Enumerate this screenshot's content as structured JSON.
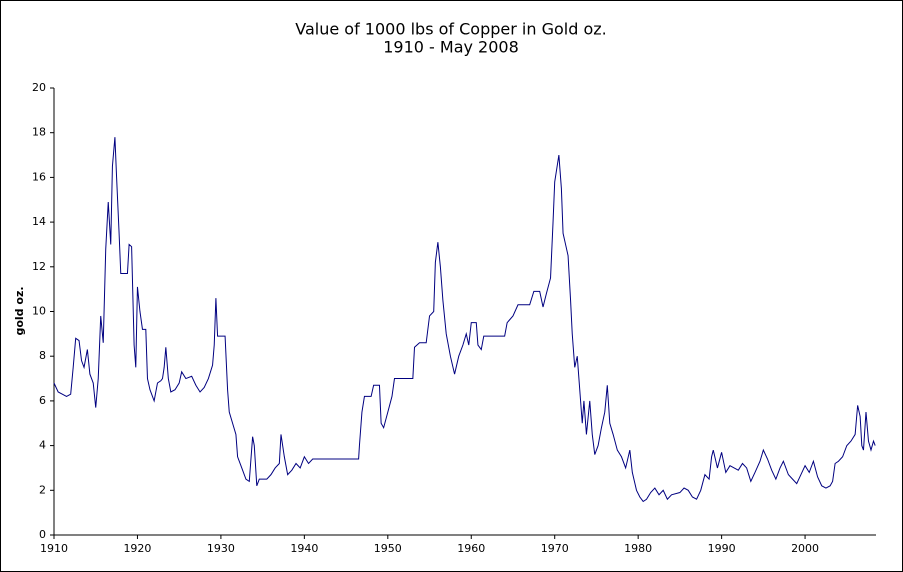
{
  "chart_data": {
    "type": "line",
    "title": "Value of 1000 lbs of Copper in Gold oz.",
    "subtitle": "1910 - May 2008",
    "y_label": "gold oz.",
    "xlim": [
      1910,
      2008.5
    ],
    "xticks": [
      1910,
      1920,
      1930,
      1940,
      1950,
      1960,
      1970,
      1980,
      1990,
      2000
    ],
    "ylim": [
      0,
      20
    ],
    "yticks": [
      0,
      2,
      4,
      6,
      8,
      10,
      12,
      14,
      16,
      18,
      20
    ],
    "grid": false,
    "series": [
      {
        "name": "copper in gold",
        "color": "#000080",
        "x": [
          1910,
          1910.5,
          1911,
          1911.5,
          1912,
          1912.3,
          1912.6,
          1913,
          1913.3,
          1913.6,
          1914,
          1914.3,
          1914.7,
          1915,
          1915.3,
          1915.6,
          1915.9,
          1916.2,
          1916.5,
          1916.8,
          1917,
          1917.3,
          1917.5,
          1917.8,
          1918,
          1918.8,
          1919,
          1919.3,
          1919.6,
          1919.8,
          1920,
          1920.3,
          1920.6,
          1921,
          1921.2,
          1921.5,
          1922,
          1922.4,
          1922.8,
          1923,
          1923.2,
          1923.4,
          1923.7,
          1924,
          1924.5,
          1925,
          1925.3,
          1925.8,
          1926.5,
          1927,
          1927.5,
          1928,
          1928.5,
          1929,
          1929.2,
          1929.4,
          1929.6,
          1930.5,
          1930.8,
          1931,
          1931.4,
          1931.8,
          1932,
          1932.5,
          1933,
          1933.4,
          1933.8,
          1934,
          1934.3,
          1934.6,
          1935.5,
          1936,
          1936.5,
          1937,
          1937.2,
          1937.6,
          1938,
          1938.5,
          1939,
          1939.5,
          1940,
          1940.5,
          1941,
          1946.5,
          1946.6,
          1946.9,
          1947.2,
          1948,
          1948.3,
          1949,
          1949.2,
          1949.5,
          1950,
          1950.5,
          1950.8,
          1953,
          1953.2,
          1953.8,
          1954.6,
          1955,
          1955.5,
          1955.7,
          1956,
          1956.3,
          1956.6,
          1957,
          1957.5,
          1958,
          1958.5,
          1959,
          1959.4,
          1959.7,
          1960,
          1960.6,
          1960.8,
          1961.2,
          1961.5,
          1964,
          1964.3,
          1965,
          1965.6,
          1967,
          1967.5,
          1968.2,
          1968.6,
          1969,
          1969.5,
          1969.8,
          1970,
          1970.5,
          1970.8,
          1971,
          1971.3,
          1971.6,
          1971.9,
          1972.1,
          1972.4,
          1972.7,
          1973,
          1973.3,
          1973.5,
          1973.8,
          1974.2,
          1974.5,
          1974.8,
          1975.2,
          1975.6,
          1976,
          1976.3,
          1976.6,
          1977,
          1977.5,
          1978,
          1978.5,
          1979,
          1979.3,
          1979.8,
          1980.2,
          1980.6,
          1981,
          1981.5,
          1982,
          1982.5,
          1983,
          1983.5,
          1984,
          1985,
          1985.5,
          1986,
          1986.5,
          1987,
          1987.5,
          1988,
          1988.5,
          1988.8,
          1989,
          1989.5,
          1990,
          1990.5,
          1991,
          1991.5,
          1992,
          1992.5,
          1993,
          1993.5,
          1994,
          1994.6,
          1995,
          1995.5,
          1996,
          1996.5,
          1997,
          1997.4,
          1998,
          1998.5,
          1999,
          1999.5,
          2000,
          2000.5,
          2001,
          2001.5,
          2002,
          2002.5,
          2003,
          2003.3,
          2003.6,
          2004,
          2004.5,
          2005,
          2005.5,
          2006,
          2006.3,
          2006.6,
          2006.8,
          2007,
          2007.3,
          2007.6,
          2007.9,
          2008.2,
          2008.4
        ],
        "values": [
          6.8,
          6.4,
          6.3,
          6.2,
          6.3,
          7.5,
          8.8,
          8.7,
          7.8,
          7.5,
          8.3,
          7.2,
          6.8,
          5.7,
          7.0,
          9.8,
          8.6,
          12.8,
          14.9,
          13.0,
          16.5,
          17.8,
          16.0,
          13.5,
          11.7,
          11.7,
          13.0,
          12.9,
          8.5,
          7.5,
          11.1,
          10.0,
          9.2,
          9.2,
          7.0,
          6.5,
          6.0,
          6.8,
          6.9,
          7.0,
          7.5,
          8.4,
          7.0,
          6.4,
          6.5,
          6.8,
          7.3,
          7.0,
          7.1,
          6.7,
          6.4,
          6.6,
          7.0,
          7.6,
          8.5,
          10.6,
          8.9,
          8.9,
          6.5,
          5.5,
          5.0,
          4.5,
          3.5,
          3.0,
          2.5,
          2.4,
          4.4,
          4.0,
          2.2,
          2.5,
          2.5,
          2.7,
          3.0,
          3.2,
          4.5,
          3.5,
          2.7,
          2.9,
          3.2,
          3.0,
          3.5,
          3.2,
          3.4,
          3.4,
          4.0,
          5.5,
          6.2,
          6.2,
          6.7,
          6.7,
          5.0,
          4.8,
          5.5,
          6.2,
          7.0,
          7.0,
          8.4,
          8.6,
          8.6,
          9.8,
          10.0,
          12.2,
          13.1,
          12.0,
          10.5,
          9.0,
          8.0,
          7.2,
          8.0,
          8.5,
          9.0,
          8.5,
          9.5,
          9.5,
          8.5,
          8.3,
          8.9,
          8.9,
          9.5,
          9.8,
          10.3,
          10.3,
          10.9,
          10.9,
          10.2,
          10.8,
          11.5,
          14.0,
          15.8,
          17.0,
          15.5,
          13.5,
          13.0,
          12.5,
          10.5,
          9.0,
          7.5,
          8.0,
          6.5,
          5.0,
          6.0,
          4.5,
          6.0,
          4.5,
          3.6,
          4.0,
          4.8,
          5.5,
          6.7,
          5.0,
          4.5,
          3.8,
          3.5,
          3.0,
          3.8,
          2.8,
          2.0,
          1.7,
          1.5,
          1.6,
          1.9,
          2.1,
          1.8,
          2.0,
          1.6,
          1.8,
          1.9,
          2.1,
          2.0,
          1.7,
          1.6,
          2.0,
          2.7,
          2.5,
          3.5,
          3.8,
          3.0,
          3.7,
          2.8,
          3.1,
          3.0,
          2.9,
          3.2,
          3.0,
          2.4,
          2.8,
          3.3,
          3.8,
          3.4,
          2.9,
          2.5,
          3.0,
          3.3,
          2.7,
          2.5,
          2.3,
          2.7,
          3.1,
          2.8,
          3.3,
          2.6,
          2.2,
          2.1,
          2.2,
          2.4,
          3.2,
          3.3,
          3.5,
          4.0,
          4.2,
          4.5,
          5.8,
          5.3,
          4.0,
          3.8,
          5.5,
          4.2,
          3.8,
          4.2,
          4.0
        ]
      }
    ]
  }
}
